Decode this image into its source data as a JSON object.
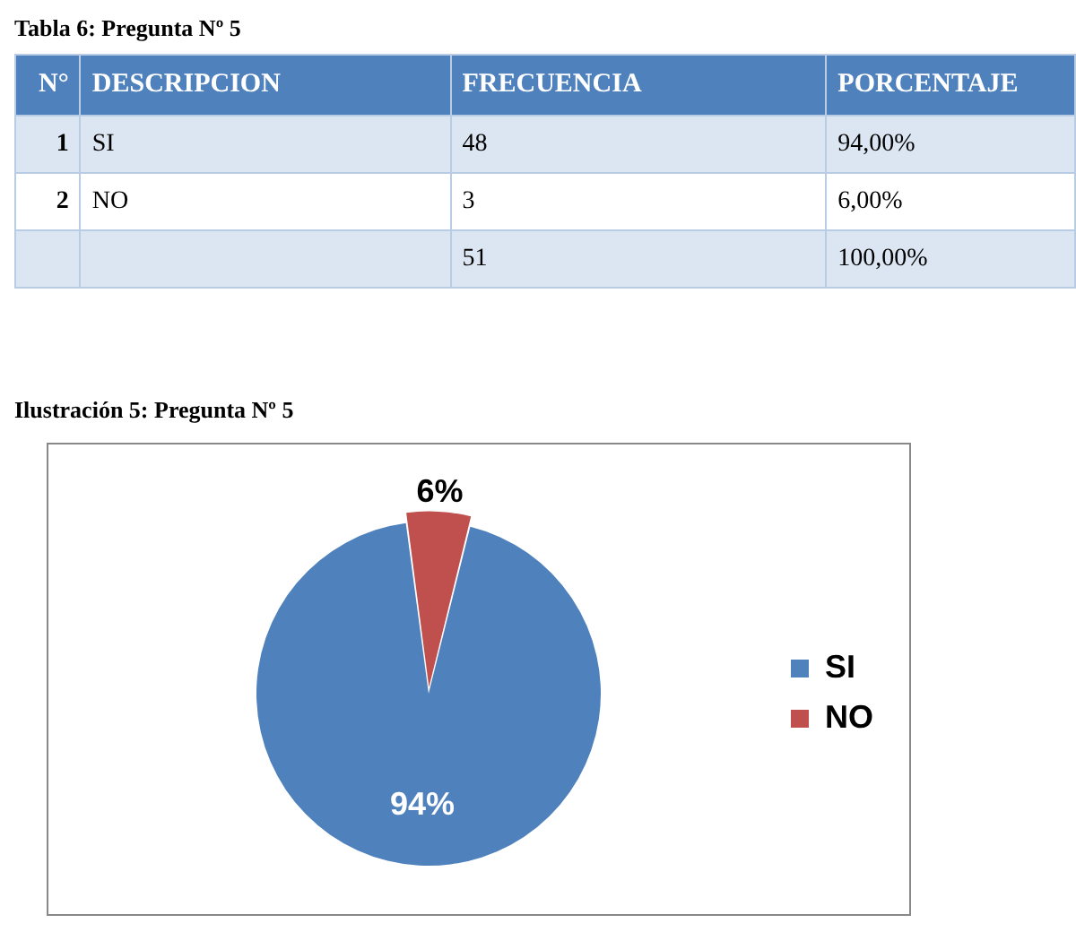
{
  "chart_data": [
    {
      "type": "other",
      "title": "Tabla 6: Pregunta Nº 5",
      "annotations": [
        "N°",
        "DESCRIPCION",
        "FRECUENCIA",
        "PORCENTAJE",
        "1",
        "SI",
        "48",
        "94,00%",
        "2",
        "NO",
        "3",
        "6,00%",
        "51",
        "100,00%"
      ]
    },
    {
      "type": "pie",
      "title": "Ilustración 5: Pregunta Nº 5",
      "categories": [
        "SI",
        "NO"
      ],
      "values": [
        94,
        6
      ],
      "colors": [
        "#4f81bd",
        "#c0504d"
      ],
      "value_labels": [
        "94%",
        "6%"
      ],
      "legend": "right"
    }
  ]
}
